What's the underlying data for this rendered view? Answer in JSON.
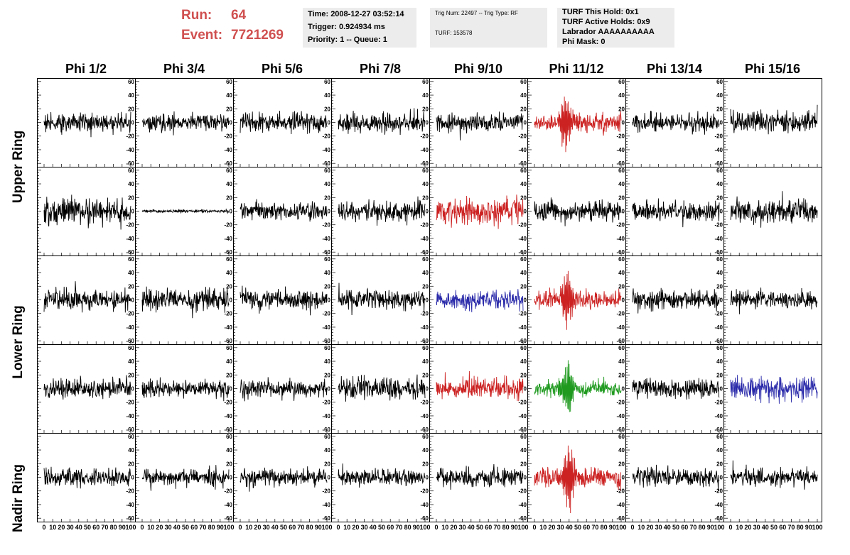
{
  "header": {
    "run_label": "Run:",
    "run_value": "64",
    "event_label": "Event:",
    "event_value": "7721269",
    "accent_color": "#d05050",
    "time_box": {
      "time": "Time: 2008-12-27 03:52:14",
      "trigger": "Trigger: 0.924934 ms",
      "priority": "Priority: 1 -- Queue: 1"
    },
    "trig_box": {
      "trig": "Trig Num: 22497 -- Trig Type: RF",
      "turf": "TURF: 153578"
    },
    "turf_box": {
      "this_hold": "TURF This Hold: 0x1",
      "active_holds": "TURF Active Holds: 0x9",
      "labrador": "Labrador AAAAAAAAAA",
      "phi_mask": "Phi Mask: 0"
    }
  },
  "columns": [
    "Phi 1/2",
    "Phi 3/4",
    "Phi 5/6",
    "Phi 7/8",
    "Phi 9/10",
    "Phi 11/12",
    "Phi 13/14",
    "Phi 15/16"
  ],
  "rings": [
    {
      "label": "Upper Ring",
      "rows": [
        0,
        1
      ]
    },
    {
      "label": "Lower Ring",
      "rows": [
        2,
        3
      ]
    },
    {
      "label": "Nadir Ring",
      "rows": [
        4
      ]
    }
  ],
  "chart_data": {
    "type": "line",
    "title": "",
    "xlabel": "",
    "ylabel": "",
    "xlim": [
      0,
      100
    ],
    "ylim": [
      -65,
      65
    ],
    "x_tick_labels": [
      "0",
      "10",
      "20",
      "30",
      "40",
      "50",
      "60",
      "70",
      "80",
      "90",
      "100"
    ],
    "y_tick_labels": [
      "60",
      "40",
      "20",
      "0",
      "-20",
      "-40",
      "-60"
    ],
    "grid": false,
    "colors": {
      "normal": "#000000",
      "triggered": "#cc2222",
      "blue": "#2a2aaa",
      "green": "#1f9a1f"
    },
    "panels": [
      [
        {
          "color": "normal",
          "amplitude": 12
        },
        {
          "color": "normal",
          "amplitude": 11
        },
        {
          "color": "normal",
          "amplitude": 12
        },
        {
          "color": "normal",
          "amplitude": 12
        },
        {
          "color": "normal",
          "amplitude": 12
        },
        {
          "color": "triggered",
          "amplitude": 12,
          "pulse": {
            "center": 36,
            "peak": 48
          }
        },
        {
          "color": "normal",
          "amplitude": 12
        },
        {
          "color": "normal",
          "amplitude": 13
        }
      ],
      [
        {
          "color": "normal",
          "amplitude": 16
        },
        {
          "color": "normal",
          "amplitude": 2
        },
        {
          "color": "normal",
          "amplitude": 12
        },
        {
          "color": "normal",
          "amplitude": 13
        },
        {
          "color": "triggered",
          "amplitude": 18
        },
        {
          "color": "normal",
          "amplitude": 13
        },
        {
          "color": "normal",
          "amplitude": 13
        },
        {
          "color": "normal",
          "amplitude": 16
        }
      ],
      [
        {
          "color": "normal",
          "amplitude": 13
        },
        {
          "color": "normal",
          "amplitude": 14
        },
        {
          "color": "normal",
          "amplitude": 13
        },
        {
          "color": "normal",
          "amplitude": 13
        },
        {
          "color": "blue",
          "amplitude": 12
        },
        {
          "color": "triggered",
          "amplitude": 12,
          "pulse": {
            "center": 38,
            "peak": 42
          }
        },
        {
          "color": "normal",
          "amplitude": 13
        },
        {
          "color": "normal",
          "amplitude": 12
        }
      ],
      [
        {
          "color": "normal",
          "amplitude": 13
        },
        {
          "color": "normal",
          "amplitude": 11
        },
        {
          "color": "normal",
          "amplitude": 12
        },
        {
          "color": "normal",
          "amplitude": 14
        },
        {
          "color": "triggered",
          "amplitude": 14
        },
        {
          "color": "green",
          "amplitude": 10,
          "pulse": {
            "center": 38,
            "peak": 46
          }
        },
        {
          "color": "normal",
          "amplitude": 12
        },
        {
          "color": "blue",
          "amplitude": 15
        }
      ],
      [
        {
          "color": "normal",
          "amplitude": 13
        },
        {
          "color": "normal",
          "amplitude": 12
        },
        {
          "color": "normal",
          "amplitude": 11
        },
        {
          "color": "normal",
          "amplitude": 11
        },
        {
          "color": "normal",
          "amplitude": 12
        },
        {
          "color": "triggered",
          "amplitude": 12,
          "pulse": {
            "center": 40,
            "peak": 55
          }
        },
        {
          "color": "normal",
          "amplitude": 12
        },
        {
          "color": "normal",
          "amplitude": 11
        }
      ]
    ]
  }
}
